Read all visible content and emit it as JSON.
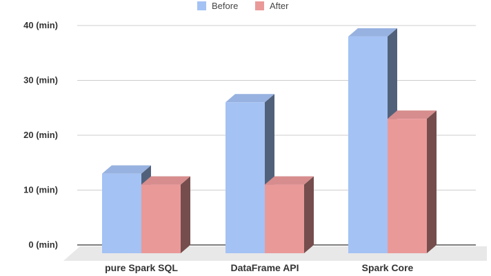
{
  "chart_data": {
    "type": "bar",
    "categories": [
      "pure Spark SQL",
      "DataFrame API",
      "Spark Core"
    ],
    "series": [
      {
        "name": "Before",
        "values": [
          13,
          26,
          38
        ],
        "color": "#a4c2f4"
      },
      {
        "name": "After",
        "values": [
          11,
          11,
          23
        ],
        "color": "#ea9999"
      }
    ],
    "ylim": [
      0,
      40
    ],
    "yticks": [
      0,
      10,
      20,
      30,
      40
    ],
    "ytick_labels": [
      "0 (min)",
      "10 (min)",
      "20 (min)",
      "30 (min)",
      "40 (min)"
    ],
    "grid": true,
    "legend": "top",
    "style": "3d",
    "title": "",
    "xlabel": "",
    "ylabel": ""
  }
}
